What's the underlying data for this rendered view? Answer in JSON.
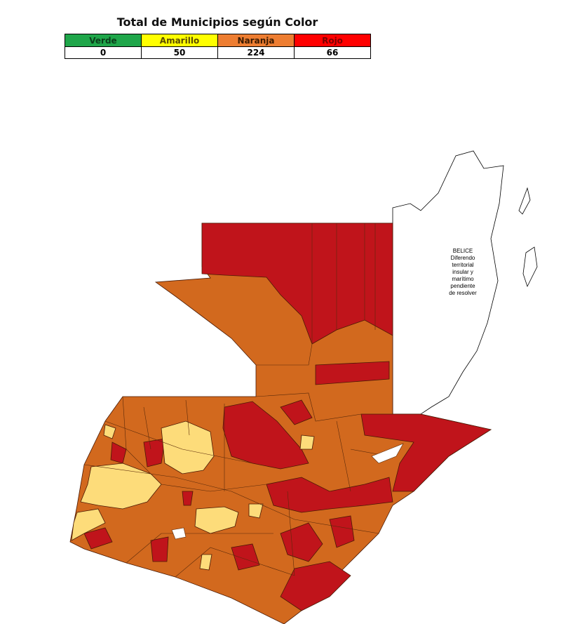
{
  "header": {
    "title": "Total de Municipios según Color"
  },
  "table": {
    "columns": [
      "Verde",
      "Amarillo",
      "Naranja",
      "Rojo"
    ],
    "rows": [
      [
        "0",
        "50",
        "224",
        "66"
      ]
    ]
  },
  "map": {
    "label": [
      "BELICE",
      "Diferendo",
      "territorial",
      "insular y",
      "marítimo",
      "pendiente",
      "de resolver"
    ]
  }
}
